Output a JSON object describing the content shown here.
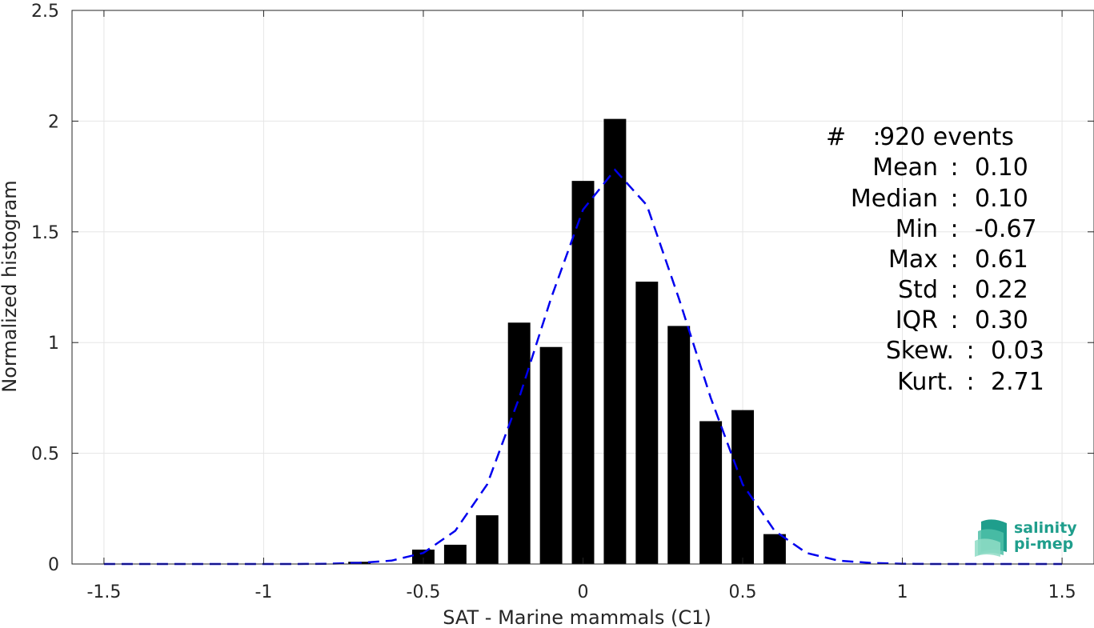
{
  "chart_data": {
    "type": "bar",
    "xlabel": "SAT - Marine mammals (C1)",
    "ylabel": "Normalized histogram",
    "xlim": [
      -1.6,
      1.6
    ],
    "ylim": [
      0,
      2.5
    ],
    "xticks": [
      "-1.5",
      "-1",
      "-0.5",
      "0",
      "0.5",
      "1",
      "1.5"
    ],
    "yticks": [
      "0",
      "0.5",
      "1",
      "1.5",
      "2",
      "2.5"
    ],
    "grid": true,
    "bar_width": 0.07,
    "bars": {
      "x": [
        -0.7,
        -0.5,
        -0.4,
        -0.3,
        -0.2,
        -0.1,
        0.0,
        0.1,
        0.2,
        0.3,
        0.4,
        0.5,
        0.6
      ],
      "values": [
        0.01,
        0.065,
        0.087,
        0.22,
        1.09,
        0.98,
        1.73,
        2.01,
        1.275,
        1.075,
        0.645,
        0.695,
        0.135
      ],
      "color": "#000000"
    },
    "fit_curve": {
      "style": "dashed",
      "color": "#0000ee",
      "x": [
        -1.5,
        -1.4,
        -1.3,
        -1.2,
        -1.1,
        -1.0,
        -0.9,
        -0.8,
        -0.7,
        -0.6,
        -0.5,
        -0.4,
        -0.3,
        -0.2,
        -0.1,
        0.0,
        0.1,
        0.2,
        0.3,
        0.4,
        0.5,
        0.6,
        0.7,
        0.8,
        0.9,
        1.0,
        1.1,
        1.2,
        1.3,
        1.4,
        1.5
      ],
      "y": [
        0,
        0,
        0,
        0,
        0,
        0,
        0,
        0.001,
        0.005,
        0.015,
        0.05,
        0.15,
        0.36,
        0.75,
        1.2,
        1.6,
        1.78,
        1.62,
        1.2,
        0.75,
        0.36,
        0.15,
        0.05,
        0.015,
        0.005,
        0.001,
        0,
        0,
        0,
        0,
        0
      ]
    },
    "stats": [
      {
        "label": "#",
        "sep": " : ",
        "value": "920 events"
      },
      {
        "label": "Mean",
        "sep": " : ",
        "value": "0.10"
      },
      {
        "label": "Median",
        "sep": " : ",
        "value": "0.10"
      },
      {
        "label": "Min",
        "sep": " : ",
        "value": "-0.67"
      },
      {
        "label": "Max",
        "sep": " : ",
        "value": "0.61"
      },
      {
        "label": "Std",
        "sep": " : ",
        "value": "0.22"
      },
      {
        "label": "IQR",
        "sep": " : ",
        "value": "0.30"
      },
      {
        "label": "Skew.",
        "sep": " : ",
        "value": "0.03"
      },
      {
        "label": "Kurt.",
        "sep": " : ",
        "value": "2.71"
      }
    ]
  },
  "logo": {
    "line1": "salinity",
    "line2": "pi-mep",
    "color": "#1f9e8c"
  }
}
